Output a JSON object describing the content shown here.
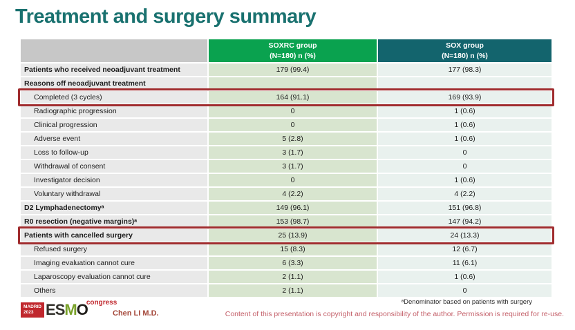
{
  "slide": {
    "title": "Treatment and surgery summary"
  },
  "table": {
    "columns": {
      "label": {
        "name": "",
        "sub": ""
      },
      "soxrc": {
        "name": "SOXRC group",
        "sub": "(N=180)  n (%)"
      },
      "sox": {
        "name": "SOX group",
        "sub": "(N=180)  n (%)"
      }
    },
    "rows": [
      {
        "label": "Patients who received neoadjuvant treatment",
        "soxrc": "179 (99.4)",
        "sox": "177 (98.3)",
        "style": "bold",
        "highlight": false
      },
      {
        "label": "Reasons off neoadjuvant treatment",
        "soxrc": "",
        "sox": "",
        "style": "bold",
        "highlight": false
      },
      {
        "label": "Completed (3 cycles)",
        "soxrc": "164 (91.1)",
        "sox": "169 (93.9)",
        "style": "indent",
        "highlight": true
      },
      {
        "label": "Radiographic progression",
        "soxrc": "0",
        "sox": "1 (0.6)",
        "style": "indent",
        "highlight": false
      },
      {
        "label": "Clinical progression",
        "soxrc": "0",
        "sox": "1 (0.6)",
        "style": "indent",
        "highlight": false
      },
      {
        "label": "Adverse event",
        "soxrc": "5 (2.8)",
        "sox": "1 (0.6)",
        "style": "indent",
        "highlight": false
      },
      {
        "label": "Loss to follow-up",
        "soxrc": "3 (1.7)",
        "sox": "0",
        "style": "indent",
        "highlight": false
      },
      {
        "label": "Withdrawal of consent",
        "soxrc": "3 (1.7)",
        "sox": "0",
        "style": "indent",
        "highlight": false
      },
      {
        "label": "Investigator decision",
        "soxrc": "0",
        "sox": "1 (0.6)",
        "style": "indent",
        "highlight": false
      },
      {
        "label": "Voluntary withdrawal",
        "soxrc": "4 (2.2)",
        "sox": "4 (2.2)",
        "style": "indent",
        "highlight": false
      },
      {
        "label": "D2 Lymphadenectomyᵃ",
        "soxrc": "149 (96.1)",
        "sox": "151 (96.8)",
        "style": "bold",
        "highlight": false
      },
      {
        "label": "R0 resection (negative margins)ᵃ",
        "soxrc": "153 (98.7)",
        "sox": "147 (94.2)",
        "style": "bold",
        "highlight": false
      },
      {
        "label": "Patients with cancelled surgery",
        "soxrc": "25 (13.9)",
        "sox": "24 (13.3)",
        "style": "bold",
        "highlight": true
      },
      {
        "label": "Refused surgery",
        "soxrc": "15 (8.3)",
        "sox": "12 (6.7)",
        "style": "indent",
        "highlight": false
      },
      {
        "label": "Imaging evaluation cannot cure",
        "soxrc": "6 (3.3)",
        "sox": "11 (6.1)",
        "style": "indent",
        "highlight": false
      },
      {
        "label": "Laparoscopy evaluation cannot cure",
        "soxrc": "2 (1.1)",
        "sox": "1 (0.6)",
        "style": "indent",
        "highlight": false
      },
      {
        "label": "Others",
        "soxrc": "2 (1.1)",
        "sox": "0",
        "style": "indent",
        "highlight": false
      }
    ]
  },
  "footer": {
    "logo": {
      "city": "MADRID",
      "year": "2023",
      "org_e": "E",
      "org_s": "S",
      "org_m": "M",
      "org_o": "O",
      "congress": "congress"
    },
    "presenter": "Chen LI M.D.",
    "footnote": "ᵃDenominator based on patients with surgery",
    "copyright": "Content of this presentation is copyright and responsibility of the author. Permission is required for re-use."
  },
  "colors": {
    "title_teal": "#19716f",
    "header_green": "#0aa24f",
    "header_teal": "#13646d",
    "header_gray": "#c7c7c7",
    "cell_gray": "#e9e9e9",
    "cell_green": "#d8e5cf",
    "cell_teal": "#e9f1ee",
    "highlight_red": "#a02c2e",
    "logo_red": "#c0272d",
    "presenter_red": "#a34537",
    "copyright_rose": "#c4606a"
  }
}
